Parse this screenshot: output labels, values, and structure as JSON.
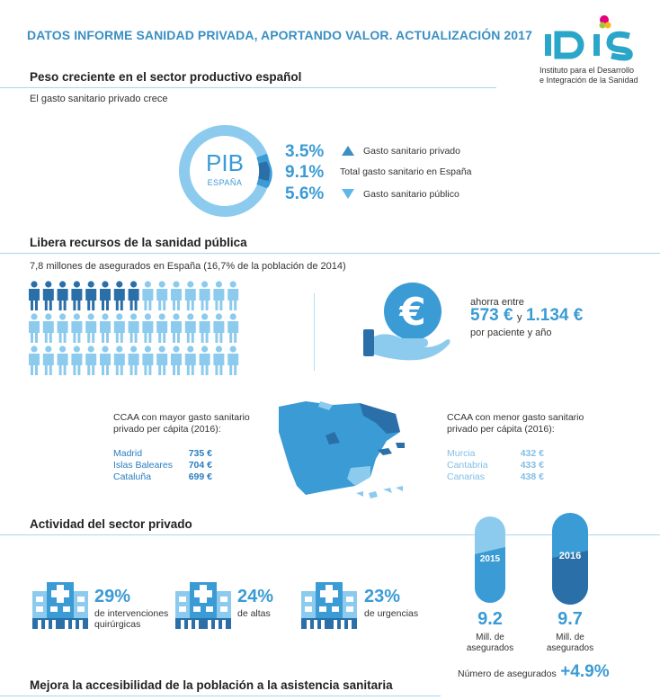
{
  "header": {
    "title": "DATOS INFORME SANIDAD PRIVADA, APORTANDO VALOR. ACTUALIZACIÓN 2017",
    "logo_text": "IDIS",
    "logo_line1": "Instituto para el Desarrollo",
    "logo_line2": "e Integración de la Sanidad"
  },
  "section1": {
    "title": "Peso creciente en el sector productivo español",
    "subtitle": "El gasto sanitario privado crece",
    "pib_label": "PIB",
    "pib_sublabel": "ESPAÑA",
    "rows": [
      {
        "pct": "3.5%",
        "label": "Gasto sanitario privado",
        "icon": "triangle-up-icon"
      },
      {
        "pct": "9.1%",
        "label": "Total gasto sanitario en España",
        "icon": ""
      },
      {
        "pct": "5.6%",
        "label": "Gasto sanitario público",
        "icon": "triangle-down-icon"
      }
    ]
  },
  "section2": {
    "title": "Libera recursos de la sanidad pública",
    "subtitle": "7,8 millones de asegurados en España (16,7% de la población de 2014)",
    "savings_intro": "ahorra entre",
    "savings_value1": "573 €",
    "savings_connector": "y",
    "savings_value2": "1.134 €",
    "savings_tail": "por paciente y año",
    "highest": {
      "title_line1": "CCAA con mayor gasto sanitario",
      "title_line2": "privado per cápita (2016):",
      "items": [
        {
          "name": "Madrid",
          "value": "735 €"
        },
        {
          "name": "Islas Baleares",
          "value": "704 €"
        },
        {
          "name": "Cataluña",
          "value": "699 €"
        }
      ]
    },
    "lowest": {
      "title_line1": "CCAA con menor gasto sanitario",
      "title_line2": "privado per cápita (2016):",
      "items": [
        {
          "name": "Murcia",
          "value": "432 €"
        },
        {
          "name": "Cantabria",
          "value": "433 €"
        },
        {
          "name": "Canarias",
          "value": "438 €"
        }
      ]
    }
  },
  "section3": {
    "title": "Actividad del sector privado",
    "stats": [
      {
        "pct": "29%",
        "line1": "de intervenciones",
        "line2": "quirúrgicas"
      },
      {
        "pct": "24%",
        "line1": "de altas",
        "line2": ""
      },
      {
        "pct": "23%",
        "line1": "de urgencias",
        "line2": ""
      }
    ],
    "insured": [
      {
        "year": "2015",
        "value": "9.2",
        "line1": "Mill. de",
        "line2": "asegurados"
      },
      {
        "year": "2016",
        "value": "9.7",
        "line1": "Mill. de",
        "line2": "asegurados"
      }
    ],
    "growth_label": "Número de asegurados",
    "growth_value": "+4.9%"
  },
  "section4": {
    "title": "Mejora la accesibilidad de la población a la asistencia sanitaria"
  },
  "colors": {
    "accent": "#3a9bd5",
    "dark_blue": "#2a6fa8",
    "light_blue": "#8ccbed"
  }
}
